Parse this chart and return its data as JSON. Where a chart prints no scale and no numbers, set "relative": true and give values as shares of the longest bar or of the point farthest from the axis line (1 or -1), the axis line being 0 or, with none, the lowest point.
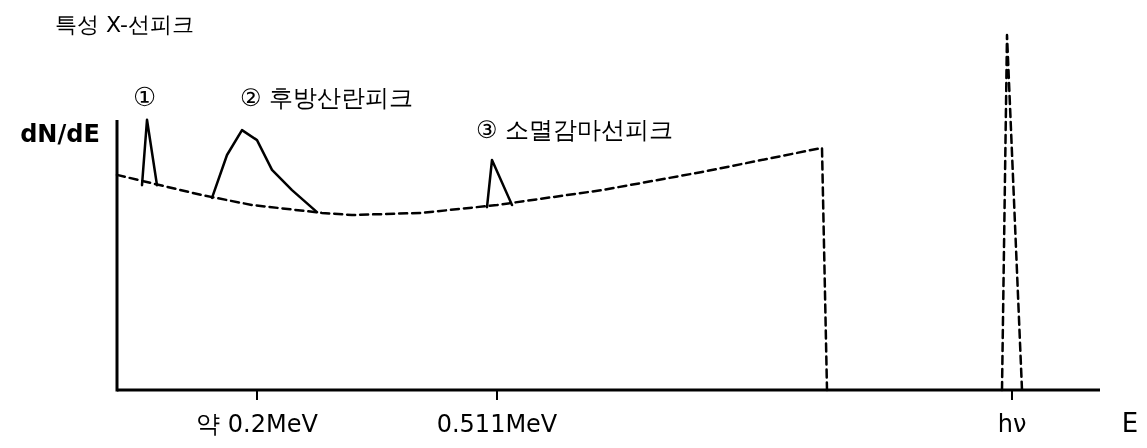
{
  "chart_data": {
    "type": "line",
    "relative": true,
    "ylabel": "dN/dE",
    "xlabel": "E",
    "categories": [
      null,
      null,
      null,
      null,
      null,
      null,
      null,
      null,
      null,
      null,
      null,
      null,
      null,
      null,
      null,
      null,
      null,
      null,
      null,
      null,
      null,
      null,
      null,
      null,
      null,
      null,
      null,
      null,
      "약 0.2MeV",
      null,
      null,
      null,
      null,
      null,
      null,
      null,
      null,
      null,
      null,
      null,
      null,
      null,
      null,
      null,
      null,
      null,
      null,
      null,
      null,
      null,
      null,
      null,
      null,
      null,
      null,
      null,
      null,
      null,
      null,
      null,
      null,
      null,
      null,
      null,
      null,
      null,
      null,
      null,
      null,
      null,
      null,
      null,
      null,
      null,
      null,
      null,
      "0.511MeV",
      null,
      null,
      null,
      null,
      null,
      null,
      null,
      null,
      null,
      null,
      null,
      null,
      null,
      null,
      null,
      null,
      null,
      null,
      null,
      null,
      null,
      null,
      null,
      null,
      null,
      null,
      null,
      null,
      null,
      null,
      null,
      null,
      null,
      null,
      null,
      null,
      null,
      null,
      null,
      null,
      null,
      null,
      null,
      null,
      null,
      null,
      null,
      null,
      null,
      null,
      null,
      null,
      null,
      null,
      null,
      null,
      null,
      null,
      null,
      null,
      null,
      null,
      null,
      null,
      null,
      null,
      null,
      null,
      null,
      null,
      null,
      null,
      null,
      null,
      null,
      null,
      null,
      null,
      null,
      null,
      null,
      null,
      null,
      null,
      null,
      null,
      null,
      null,
      null,
      null,
      null,
      null,
      null,
      null,
      null,
      null,
      null,
      null,
      null,
      null,
      null,
      null,
      "hν",
      null,
      null,
      null,
      null,
      null,
      null
    ],
    "marker": "none",
    "series": [
      {
        "color": "#000000",
        "line_style": "dashed",
        "values": [
          0.606,
          null,
          null,
          null,
          null,
          null,
          null,
          null,
          null,
          null,
          null,
          null,
          null,
          null,
          null,
          null,
          null,
          0.549,
          null,
          null,
          null,
          null,
          null,
          null,
          null,
          null,
          null,
          0.521,
          null,
          null,
          null,
          null,
          null,
          null,
          null,
          null,
          null,
          null,
          null,
          null,
          null,
          0.499,
          null,
          null,
          null,
          null,
          null,
          0.493,
          null,
          null,
          null,
          null,
          null,
          null,
          null,
          null,
          null,
          null,
          null,
          null,
          null,
          0.499,
          null,
          null,
          null,
          null,
          null,
          null,
          null,
          null,
          null,
          null,
          null,
          null,
          null,
          null,
          0.521,
          null,
          null,
          null,
          null,
          null,
          null,
          null,
          null,
          null,
          null,
          null,
          null,
          null,
          null,
          null,
          null,
          null,
          null,
          null,
          null,
          0.563,
          null,
          null,
          null,
          null,
          null,
          null,
          null,
          null,
          null,
          null,
          null,
          null,
          null,
          null,
          null,
          null,
          null,
          null,
          null,
          0.614,
          null,
          null,
          null,
          null,
          null,
          null,
          null,
          null,
          null,
          null,
          null,
          null,
          null,
          null,
          null,
          null,
          null,
          null,
          null,
          null,
          null,
          null,
          null,
          0.682,
          0,
          null,
          null,
          null,
          null,
          null,
          null,
          null,
          null,
          null,
          null,
          null,
          null,
          null,
          null,
          null,
          null,
          null,
          null,
          null,
          null,
          null,
          null,
          null,
          null,
          null,
          null,
          null,
          null,
          null,
          null,
          null,
          null,
          null,
          null,
          null,
          null,
          null,
          null,
          null,
          null,
          null,
          null,
          null
        ]
      },
      {
        "color": "#000000",
        "line_style": "solid",
        "values": [
          null,
          null,
          null,
          null,
          null,
          0.577,
          0.761,
          null,
          0.577,
          null,
          null,
          null,
          null,
          null,
          null,
          null,
          null,
          null,
          null,
          null,
          null,
          null,
          null,
          null,
          null,
          null,
          null,
          null,
          null,
          null,
          null,
          null,
          null,
          null,
          null,
          null,
          null,
          null,
          null,
          null,
          null,
          null,
          null,
          null,
          null,
          null,
          null,
          null,
          null,
          null,
          null,
          null,
          null,
          null,
          null,
          null,
          null,
          null,
          null,
          null,
          null,
          null,
          null,
          null,
          null,
          null,
          null,
          null,
          null,
          null,
          null,
          null,
          null,
          null,
          null,
          null,
          null,
          null,
          null,
          null,
          null,
          null,
          null,
          null,
          null,
          null,
          null,
          null,
          null,
          null,
          null,
          null,
          null,
          null,
          null,
          null,
          null,
          null,
          null,
          null,
          null,
          null,
          null,
          null,
          null,
          null,
          null,
          null,
          null,
          null,
          null,
          null,
          null,
          null,
          null,
          null,
          null,
          null,
          null,
          null,
          null,
          null,
          null,
          null,
          null,
          null,
          null,
          null,
          null,
          null,
          null,
          null,
          null,
          null,
          null,
          null,
          null,
          null,
          null,
          null,
          null,
          null,
          null,
          null,
          null,
          null,
          null,
          null,
          null,
          null,
          null,
          null,
          null,
          null,
          null,
          null,
          null,
          null,
          null,
          null,
          null,
          null,
          null,
          null,
          null,
          null,
          null,
          null,
          null,
          null,
          null,
          null,
          null,
          null,
          null,
          null,
          null,
          null,
          null,
          null,
          null,
          null,
          null,
          null,
          null,
          null
        ]
      },
      {
        "color": "#000000",
        "line_style": "solid",
        "values": [
          null,
          null,
          null,
          null,
          null,
          null,
          null,
          null,
          null,
          null,
          null,
          null,
          null,
          null,
          null,
          null,
          null,
          null,
          null,
          0.541,
          null,
          null,
          0.662,
          null,
          null,
          0.732,
          null,
          null,
          0.704,
          null,
          null,
          0.62,
          null,
          null,
          null,
          0.563,
          null,
          null,
          null,
          null,
          0.501,
          null,
          null,
          null,
          null,
          null,
          null,
          null,
          null,
          null,
          null,
          null,
          null,
          null,
          null,
          null,
          null,
          null,
          null,
          null,
          null,
          null,
          null,
          null,
          null,
          null,
          null,
          null,
          null,
          null,
          null,
          null,
          null,
          null,
          null,
          null,
          null,
          null,
          null,
          null,
          null,
          null,
          null,
          null,
          null,
          null,
          null,
          null,
          null,
          null,
          null,
          null,
          null,
          null,
          null,
          null,
          null,
          null,
          null,
          null,
          null,
          null,
          null,
          null,
          null,
          null,
          null,
          null,
          null,
          null,
          null,
          null,
          null,
          null,
          null,
          null,
          null,
          null,
          null,
          null,
          null,
          null,
          null,
          null,
          null,
          null,
          null,
          null,
          null,
          null,
          null,
          null,
          null,
          null,
          null,
          null,
          null,
          null,
          null,
          null,
          null,
          null,
          null,
          null,
          null,
          null,
          null,
          null,
          null,
          null,
          null,
          null,
          null,
          null,
          null,
          null,
          null,
          null,
          null,
          null,
          null,
          null,
          null,
          null,
          null,
          null,
          null,
          null,
          null,
          null,
          null,
          null,
          null,
          null,
          null,
          null,
          null,
          null,
          null,
          null,
          null,
          null,
          null,
          null,
          null,
          null
        ]
      },
      {
        "color": "#000000",
        "line_style": "solid",
        "values": [
          null,
          null,
          null,
          null,
          null,
          null,
          null,
          null,
          null,
          null,
          null,
          null,
          null,
          null,
          null,
          null,
          null,
          null,
          null,
          null,
          null,
          null,
          null,
          null,
          null,
          null,
          null,
          null,
          null,
          null,
          null,
          null,
          null,
          null,
          null,
          null,
          null,
          null,
          null,
          null,
          null,
          null,
          null,
          null,
          null,
          null,
          null,
          null,
          null,
          null,
          null,
          null,
          null,
          null,
          null,
          null,
          null,
          null,
          null,
          null,
          null,
          null,
          null,
          null,
          null,
          null,
          null,
          null,
          null,
          null,
          null,
          null,
          null,
          null,
          0.515,
          0.648,
          null,
          null,
          null,
          0.521,
          null,
          null,
          null,
          null,
          null,
          null,
          null,
          null,
          null,
          null,
          null,
          null,
          null,
          null,
          null,
          null,
          null,
          null,
          null,
          null,
          null,
          null,
          null,
          null,
          null,
          null,
          null,
          null,
          null,
          null,
          null,
          null,
          null,
          null,
          null,
          null,
          null,
          null,
          null,
          null,
          null,
          null,
          null,
          null,
          null,
          null,
          null,
          null,
          null,
          null,
          null,
          null,
          null,
          null,
          null,
          null,
          null,
          null,
          null,
          null,
          null,
          null,
          null,
          null,
          null,
          null,
          null,
          null,
          null,
          null,
          null,
          null,
          null,
          null,
          null,
          null,
          null,
          null,
          null,
          null,
          null,
          null,
          null,
          null,
          null,
          null,
          null,
          null,
          null,
          null,
          null,
          null,
          null,
          null,
          null,
          null,
          null,
          null,
          null,
          null,
          null,
          null,
          null,
          null,
          null,
          null
        ]
      },
      {
        "color": "#000000",
        "line_style": "dashed",
        "values": [
          null,
          null,
          null,
          null,
          null,
          null,
          null,
          null,
          null,
          null,
          null,
          null,
          null,
          null,
          null,
          null,
          null,
          null,
          null,
          null,
          null,
          null,
          null,
          null,
          null,
          null,
          null,
          null,
          null,
          null,
          null,
          null,
          null,
          null,
          null,
          null,
          null,
          null,
          null,
          null,
          null,
          null,
          null,
          null,
          null,
          null,
          null,
          null,
          null,
          null,
          null,
          null,
          null,
          null,
          null,
          null,
          null,
          null,
          null,
          null,
          null,
          null,
          null,
          null,
          null,
          null,
          null,
          null,
          null,
          null,
          null,
          null,
          null,
          null,
          null,
          null,
          null,
          null,
          null,
          null,
          null,
          null,
          null,
          null,
          null,
          null,
          null,
          null,
          null,
          null,
          null,
          null,
          null,
          null,
          null,
          null,
          null,
          null,
          null,
          null,
          null,
          null,
          null,
          null,
          null,
          null,
          null,
          null,
          null,
          null,
          null,
          null,
          null,
          null,
          null,
          null,
          null,
          null,
          null,
          null,
          null,
          null,
          null,
          null,
          null,
          null,
          null,
          null,
          null,
          null,
          null,
          null,
          null,
          null,
          null,
          null,
          null,
          null,
          null,
          null,
          null,
          null,
          null,
          null,
          null,
          null,
          null,
          null,
          null,
          null,
          null,
          null,
          null,
          null,
          null,
          null,
          null,
          null,
          null,
          null,
          null,
          null,
          null,
          null,
          null,
          null,
          null,
          null,
          null,
          null,
          null,
          null,
          null,
          null,
          null,
          null,
          null,
          0,
          1,
          null,
          null,
          0,
          null,
          null,
          null,
          null
        ]
      }
    ],
    "annotations": [
      "특성 X-선피크",
      "①",
      "② 후방산란피크",
      "③ 소멸감마선피크"
    ]
  }
}
